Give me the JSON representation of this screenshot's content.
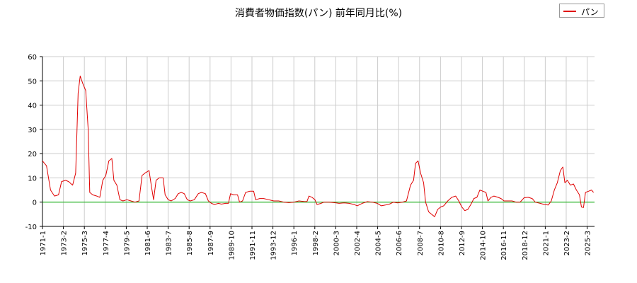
{
  "chart_data": {
    "type": "line",
    "title": "消費者物価指数(パン) 前年同月比(%)",
    "xlabel": "",
    "ylabel": "",
    "ylim": [
      -10,
      60
    ],
    "yticks": [
      -10,
      0,
      10,
      20,
      30,
      40,
      50,
      60
    ],
    "x_ticks": [
      "1971-1",
      "1973-2",
      "1975-3",
      "1977-4",
      "1979-5",
      "1981-6",
      "1983-7",
      "1985-8",
      "1987-9",
      "1989-10",
      "1991-11",
      "1993-12",
      "1996-1",
      "1998-2",
      "2000-3",
      "2002-4",
      "2004-5",
      "2006-6",
      "2008-7",
      "2010-8",
      "2012-9",
      "2014-10",
      "2016-11",
      "2018-12",
      "2021-1",
      "2023-2",
      "2025-3"
    ],
    "grid": true,
    "legend_position": "top-right",
    "zero_line_color": "#00b000",
    "series": [
      {
        "name": "パン",
        "color": "#e00000",
        "points": [
          [
            1971.0,
            17
          ],
          [
            1971.4,
            15
          ],
          [
            1971.8,
            5
          ],
          [
            1972.2,
            2.5
          ],
          [
            1972.6,
            3
          ],
          [
            1972.9,
            8.5
          ],
          [
            1973.3,
            9
          ],
          [
            1973.6,
            8.5
          ],
          [
            1974.0,
            7
          ],
          [
            1974.3,
            12
          ],
          [
            1974.55,
            45
          ],
          [
            1974.75,
            52
          ],
          [
            1975.0,
            49
          ],
          [
            1975.3,
            46
          ],
          [
            1975.55,
            30
          ],
          [
            1975.7,
            4
          ],
          [
            1976.0,
            3
          ],
          [
            1976.4,
            2.5
          ],
          [
            1976.7,
            2
          ],
          [
            1977.0,
            9
          ],
          [
            1977.3,
            11
          ],
          [
            1977.6,
            17
          ],
          [
            1977.9,
            18
          ],
          [
            1978.1,
            9
          ],
          [
            1978.4,
            7
          ],
          [
            1978.7,
            1
          ],
          [
            1979.0,
            0.5
          ],
          [
            1979.4,
            1
          ],
          [
            1979.8,
            0.5
          ],
          [
            1980.2,
            0
          ],
          [
            1980.6,
            0.5
          ],
          [
            1980.9,
            11
          ],
          [
            1981.2,
            12
          ],
          [
            1981.6,
            13
          ],
          [
            1981.85,
            6
          ],
          [
            1982.05,
            1
          ],
          [
            1982.3,
            9
          ],
          [
            1982.6,
            10
          ],
          [
            1983.0,
            10
          ],
          [
            1983.2,
            3
          ],
          [
            1983.5,
            1
          ],
          [
            1983.8,
            0.5
          ],
          [
            1984.2,
            1.5
          ],
          [
            1984.5,
            3.5
          ],
          [
            1984.8,
            4
          ],
          [
            1985.1,
            3.5
          ],
          [
            1985.4,
            1
          ],
          [
            1985.7,
            0.5
          ],
          [
            1986.1,
            1
          ],
          [
            1986.5,
            3.5
          ],
          [
            1986.8,
            4
          ],
          [
            1987.2,
            3.5
          ],
          [
            1987.5,
            0.5
          ],
          [
            1987.8,
            -0.5
          ],
          [
            1988.1,
            -1
          ],
          [
            1988.5,
            -0.5
          ],
          [
            1988.8,
            -0.8
          ],
          [
            1989.2,
            -0.5
          ],
          [
            1989.5,
            -0.5
          ],
          [
            1989.7,
            3.5
          ],
          [
            1990.0,
            3
          ],
          [
            1990.4,
            3
          ],
          [
            1990.6,
            0
          ],
          [
            1990.9,
            0.5
          ],
          [
            1991.2,
            4
          ],
          [
            1991.6,
            4.5
          ],
          [
            1992.0,
            4.5
          ],
          [
            1992.2,
            1
          ],
          [
            1992.6,
            1.5
          ],
          [
            1993.0,
            1.5
          ],
          [
            1993.5,
            1
          ],
          [
            1994.0,
            0.5
          ],
          [
            1994.5,
            0.5
          ],
          [
            1995.0,
            0
          ],
          [
            1995.5,
            -0.2
          ],
          [
            1996.0,
            0
          ],
          [
            1996.5,
            0.5
          ],
          [
            1997.0,
            0.3
          ],
          [
            1997.3,
            0.2
          ],
          [
            1997.5,
            2.5
          ],
          [
            1997.8,
            2
          ],
          [
            1998.1,
            1
          ],
          [
            1998.3,
            -1
          ],
          [
            1998.7,
            -0.5
          ],
          [
            1999.0,
            0
          ],
          [
            1999.5,
            0
          ],
          [
            2000.0,
            -0.2
          ],
          [
            2000.5,
            -0.5
          ],
          [
            2001.0,
            -0.3
          ],
          [
            2001.5,
            -0.5
          ],
          [
            2002.0,
            -1
          ],
          [
            2002.3,
            -1.5
          ],
          [
            2002.8,
            -0.5
          ],
          [
            2003.3,
            0.2
          ],
          [
            2003.8,
            0
          ],
          [
            2004.3,
            -0.5
          ],
          [
            2004.7,
            -1.5
          ],
          [
            2005.1,
            -1.2
          ],
          [
            2005.5,
            -0.8
          ],
          [
            2005.9,
            0
          ],
          [
            2006.3,
            -0.3
          ],
          [
            2006.8,
            0
          ],
          [
            2007.2,
            0.5
          ],
          [
            2007.6,
            7
          ],
          [
            2007.9,
            9
          ],
          [
            2008.1,
            16
          ],
          [
            2008.35,
            17
          ],
          [
            2008.6,
            12
          ],
          [
            2008.9,
            8
          ],
          [
            2009.1,
            0
          ],
          [
            2009.4,
            -4
          ],
          [
            2009.7,
            -5
          ],
          [
            2010.0,
            -6
          ],
          [
            2010.3,
            -3
          ],
          [
            2010.6,
            -2
          ],
          [
            2010.9,
            -1.5
          ],
          [
            2011.3,
            0.5
          ],
          [
            2011.7,
            2
          ],
          [
            2012.1,
            2.5
          ],
          [
            2012.4,
            0.5
          ],
          [
            2012.7,
            -2
          ],
          [
            2013.0,
            -3.5
          ],
          [
            2013.3,
            -3
          ],
          [
            2013.6,
            -1
          ],
          [
            2013.9,
            1.5
          ],
          [
            2014.2,
            2
          ],
          [
            2014.5,
            5
          ],
          [
            2014.8,
            4.5
          ],
          [
            2015.1,
            4
          ],
          [
            2015.3,
            0.5
          ],
          [
            2015.6,
            2
          ],
          [
            2015.9,
            2.5
          ],
          [
            2016.3,
            2
          ],
          [
            2016.6,
            1.5
          ],
          [
            2016.9,
            0.5
          ],
          [
            2017.3,
            0.5
          ],
          [
            2017.7,
            0.5
          ],
          [
            2018.1,
            0
          ],
          [
            2018.5,
            0
          ],
          [
            2018.9,
            1.8
          ],
          [
            2019.3,
            2
          ],
          [
            2019.7,
            1.5
          ],
          [
            2020.0,
            0
          ],
          [
            2020.5,
            -0.5
          ],
          [
            2020.9,
            -1
          ],
          [
            2021.3,
            -1.2
          ],
          [
            2021.6,
            0.5
          ],
          [
            2021.9,
            5
          ],
          [
            2022.2,
            8
          ],
          [
            2022.5,
            13
          ],
          [
            2022.75,
            14.5
          ],
          [
            2022.95,
            8
          ],
          [
            2023.2,
            9
          ],
          [
            2023.5,
            7
          ],
          [
            2023.8,
            7.5
          ],
          [
            2024.1,
            5
          ],
          [
            2024.4,
            3
          ],
          [
            2024.6,
            -2
          ],
          [
            2024.8,
            -2.2
          ],
          [
            2025.0,
            4
          ],
          [
            2025.3,
            4.5
          ],
          [
            2025.6,
            5
          ],
          [
            2025.8,
            4
          ]
        ]
      }
    ]
  }
}
